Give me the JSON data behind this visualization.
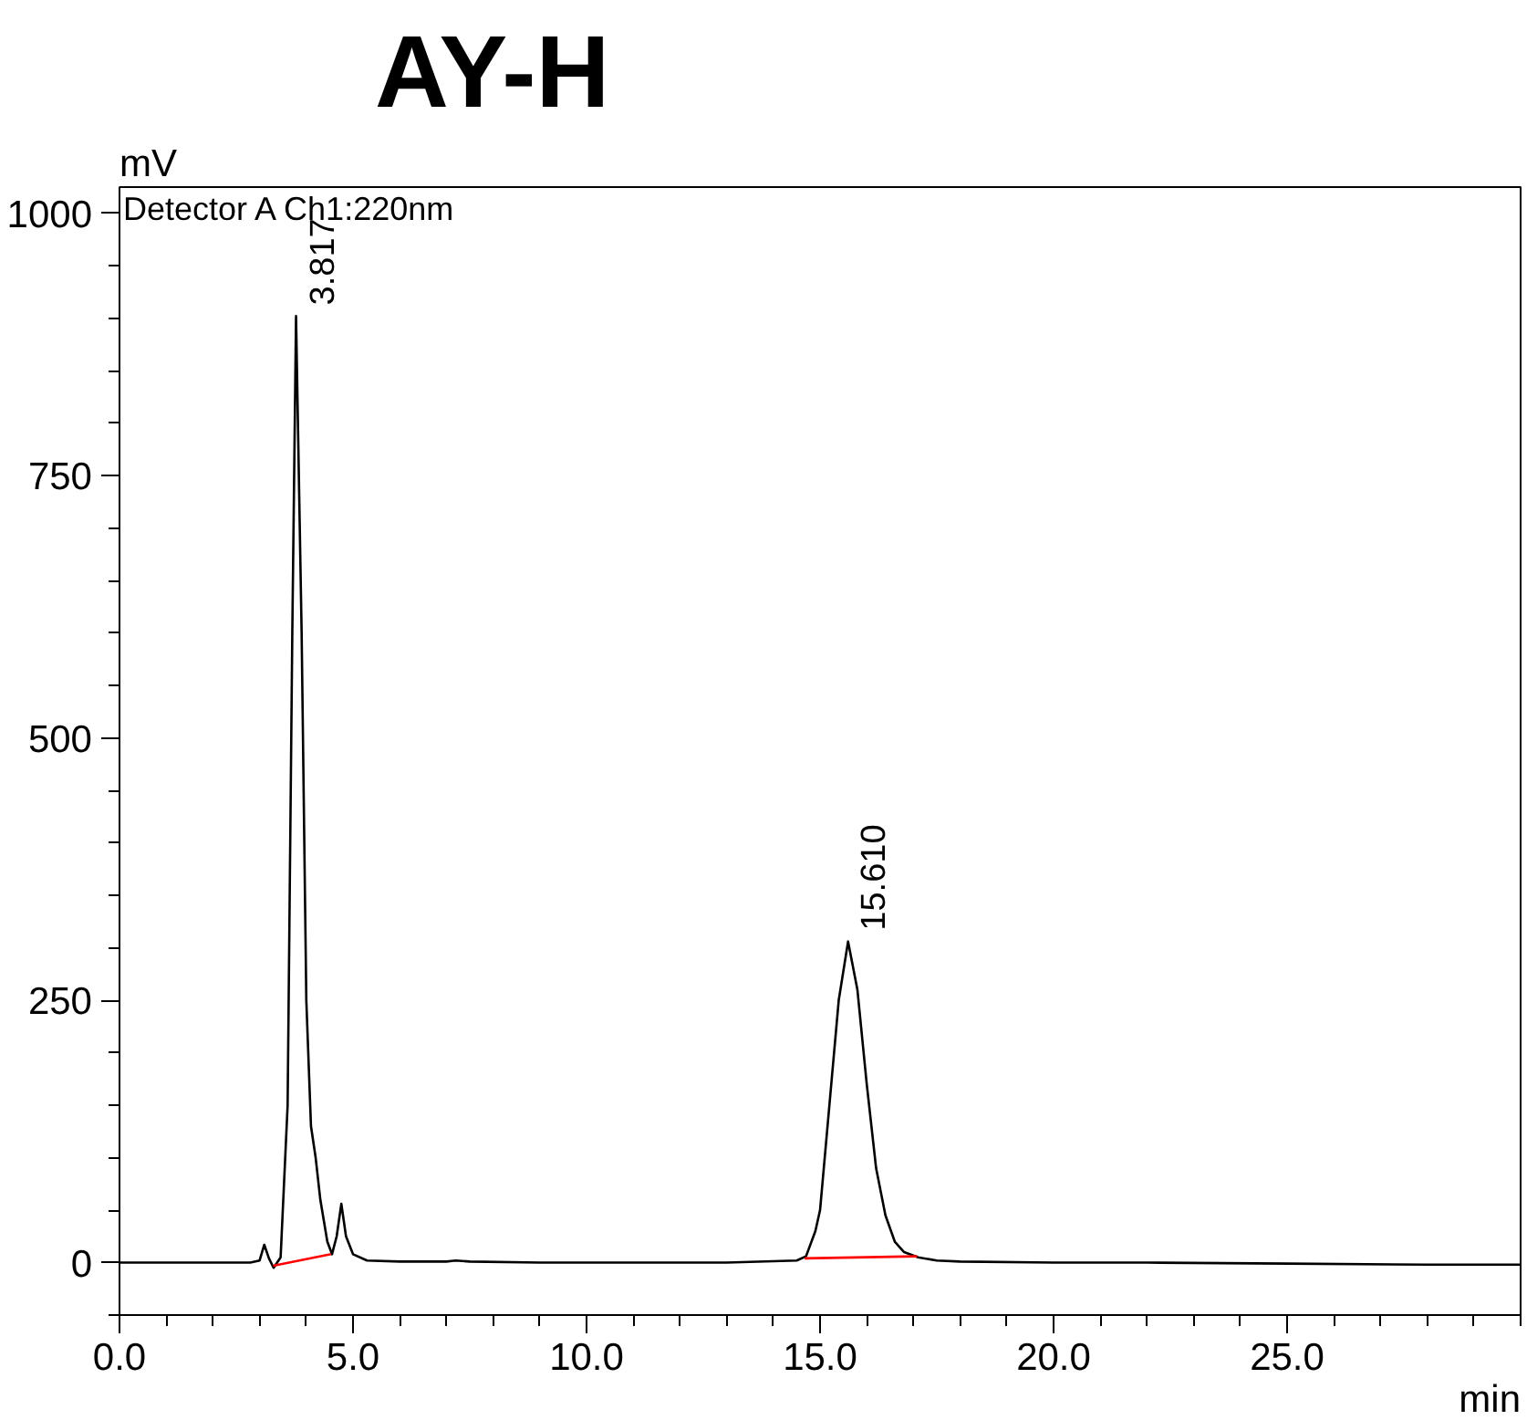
{
  "chart_data": {
    "type": "line",
    "title": "AY-H",
    "xlabel": "min",
    "ylabel": "mV",
    "x": [
      0,
      1,
      2,
      2.8,
      3.0,
      3.1,
      3.2,
      3.3,
      3.45,
      3.6,
      3.7,
      3.78,
      3.9,
      4.0,
      4.1,
      4.2,
      4.3,
      4.45,
      4.55,
      4.65,
      4.75,
      4.85,
      5.0,
      5.3,
      6,
      7,
      7.2,
      7.5,
      9,
      11,
      13,
      14.5,
      14.7,
      14.9,
      15.0,
      15.2,
      15.4,
      15.6,
      15.8,
      16.0,
      16.2,
      16.4,
      16.6,
      16.8,
      17.1,
      17.5,
      18,
      20,
      22,
      25,
      28,
      30
    ],
    "series": [
      {
        "color": "#000000",
        "values": [
          0,
          0,
          0,
          0,
          2,
          17,
          4,
          -5,
          5,
          150,
          600,
          902,
          600,
          250,
          130,
          100,
          60,
          20,
          8,
          25,
          56,
          25,
          8,
          2,
          1,
          1,
          2,
          1,
          0,
          0,
          0,
          2,
          6,
          30,
          50,
          150,
          250,
          306,
          260,
          170,
          90,
          45,
          20,
          10,
          5,
          2,
          1,
          0,
          0,
          -1,
          -2,
          -2
        ]
      },
      {
        "color": "#ff0000",
        "x": [
          3.29,
          4.53,
          4.6,
          14.67,
          17.08
        ],
        "values": [
          -3,
          8,
          null,
          4,
          6
        ]
      }
    ],
    "xlim": [
      0,
      30
    ],
    "ylim": [
      -50,
      1025
    ],
    "xticks": [
      {
        "value": 0,
        "label": "0.0"
      },
      {
        "value": 1,
        "label": null
      },
      {
        "value": 2,
        "label": null
      },
      {
        "value": 3,
        "label": null
      },
      {
        "value": 4,
        "label": null
      },
      {
        "value": 5,
        "label": "5.0"
      },
      {
        "value": 6,
        "label": null
      },
      {
        "value": 7,
        "label": null
      },
      {
        "value": 8,
        "label": null
      },
      {
        "value": 9,
        "label": null
      },
      {
        "value": 10,
        "label": "10.0"
      },
      {
        "value": 11,
        "label": null
      },
      {
        "value": 12,
        "label": null
      },
      {
        "value": 13,
        "label": null
      },
      {
        "value": 14,
        "label": null
      },
      {
        "value": 15,
        "label": "15.0"
      },
      {
        "value": 16,
        "label": null
      },
      {
        "value": 17,
        "label": null
      },
      {
        "value": 18,
        "label": null
      },
      {
        "value": 19,
        "label": null
      },
      {
        "value": 20,
        "label": "20.0"
      },
      {
        "value": 21,
        "label": null
      },
      {
        "value": 22,
        "label": null
      },
      {
        "value": 23,
        "label": null
      },
      {
        "value": 24,
        "label": null
      },
      {
        "value": 25,
        "label": "25.0"
      },
      {
        "value": 26,
        "label": null
      },
      {
        "value": 27,
        "label": null
      },
      {
        "value": 28,
        "label": null
      },
      {
        "value": 29,
        "label": null
      },
      {
        "value": 30,
        "label": null
      }
    ],
    "yticks": [
      {
        "value": -50,
        "label": null
      },
      0,
      {
        "value": 50,
        "label": null
      },
      {
        "value": 100,
        "label": null
      },
      {
        "value": 150,
        "label": null
      },
      {
        "value": 200,
        "label": null
      },
      250,
      {
        "value": 300,
        "label": null
      },
      {
        "value": 350,
        "label": null
      },
      {
        "value": 400,
        "label": null
      },
      {
        "value": 450,
        "label": null
      },
      500,
      {
        "value": 550,
        "label": null
      },
      {
        "value": 600,
        "label": null
      },
      {
        "value": 650,
        "label": null
      },
      {
        "value": 700,
        "label": null
      },
      750,
      {
        "value": 800,
        "label": null
      },
      {
        "value": 850,
        "label": null
      },
      {
        "value": 900,
        "label": null
      },
      {
        "value": 950,
        "label": null
      },
      1000
    ],
    "annotations": [
      "Detector A Ch1:220nm",
      {
        "text": "3.817",
        "x": 3.817,
        "y": 902
      },
      {
        "text": "15.610",
        "x": 15.61,
        "y": 306
      }
    ],
    "grid": false,
    "marker": "none",
    "line_style": "solid"
  }
}
